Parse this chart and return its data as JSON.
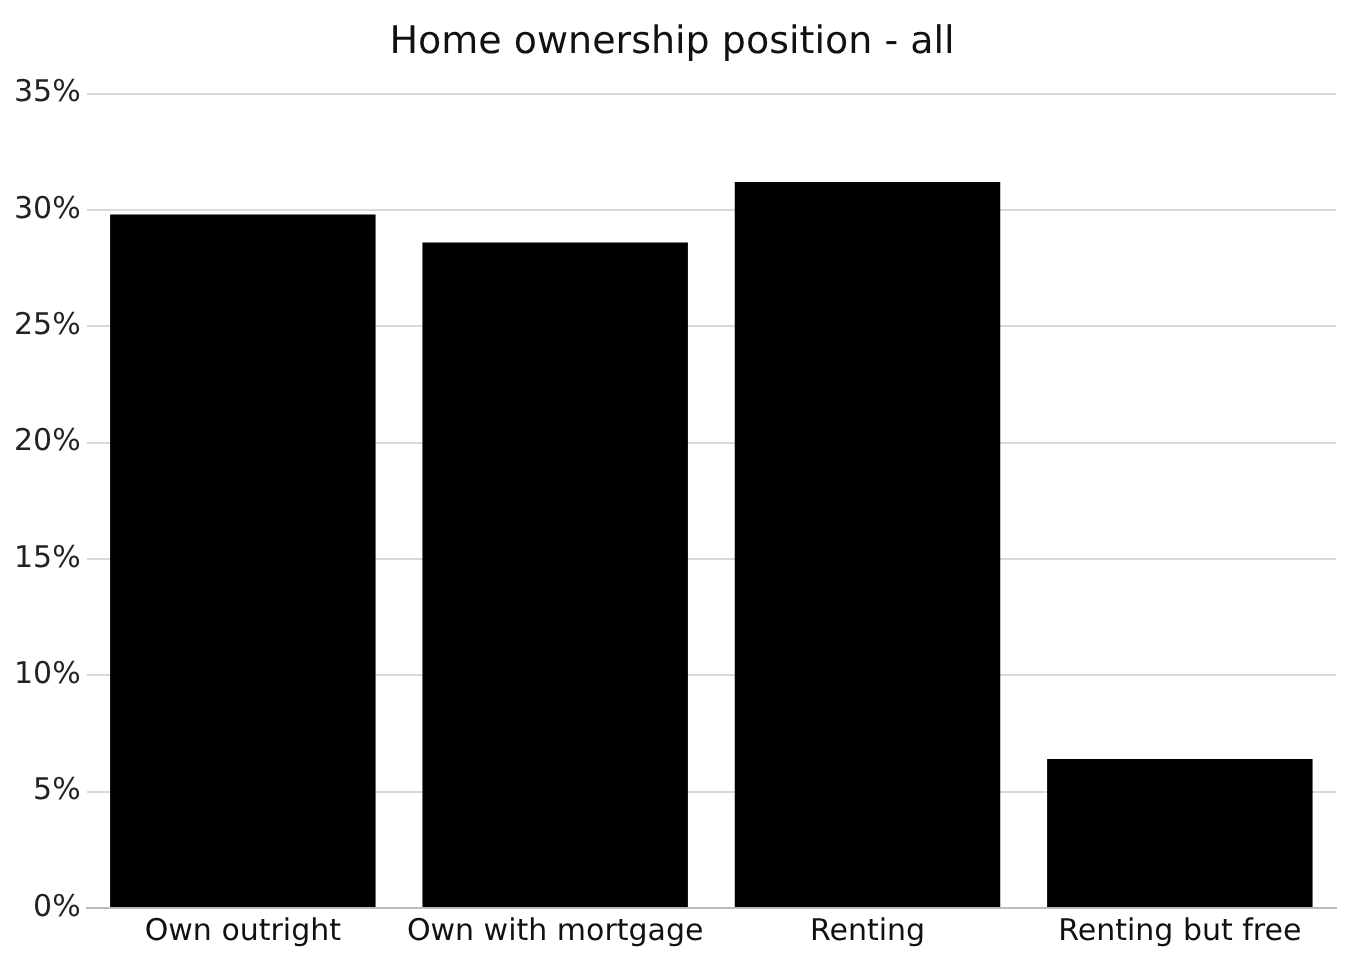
{
  "chart_data": {
    "type": "bar",
    "title": "Home ownership position - all",
    "categories": [
      "Own outright",
      "Own with mortgage",
      "Renting",
      "Renting but free"
    ],
    "values": [
      29.8,
      28.6,
      31.2,
      6.4
    ],
    "color": "#000000",
    "ylim": [
      0,
      35
    ],
    "yticks": [
      {
        "value": 0,
        "label": "0%"
      },
      {
        "value": 5,
        "label": "5%"
      },
      {
        "value": 10,
        "label": "10%"
      },
      {
        "value": 15,
        "label": "15%"
      },
      {
        "value": 20,
        "label": "20%"
      },
      {
        "value": 25,
        "label": "25%"
      },
      {
        "value": 30,
        "label": "30%"
      },
      {
        "value": 35,
        "label": "35%"
      }
    ],
    "grid": "y"
  }
}
